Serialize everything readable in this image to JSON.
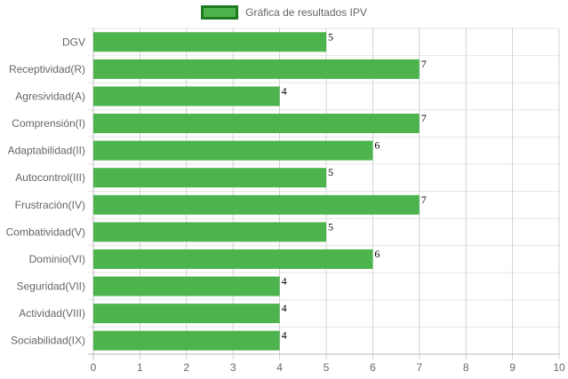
{
  "chart_data": {
    "type": "bar",
    "orientation": "horizontal",
    "categories": [
      "DGV",
      "Receptividad(R)",
      "Agresividad(A)",
      "Comprensión(I)",
      "Adaptabilidad(II)",
      "Autocontrol(III)",
      "Frustración(IV)",
      "Combatividad(V)",
      "Dominio(VI)",
      "Seguridad(VII)",
      "Actividad(VIII)",
      "Sociabilidad(IX)"
    ],
    "series": [
      {
        "name": "Gráfica de resultados IPV",
        "values": [
          5,
          7,
          4,
          7,
          6,
          5,
          7,
          5,
          6,
          4,
          4,
          4
        ],
        "color": "#4db34d",
        "border_color": "#1f7a1f"
      }
    ],
    "xlim": [
      0,
      10
    ],
    "xticks": [
      0,
      1,
      2,
      3,
      4,
      5,
      6,
      7,
      8,
      9,
      10
    ],
    "xlabel": "",
    "ylabel": "",
    "title": "",
    "grid": true,
    "legend_position": "top-center",
    "show_value_labels": true
  }
}
